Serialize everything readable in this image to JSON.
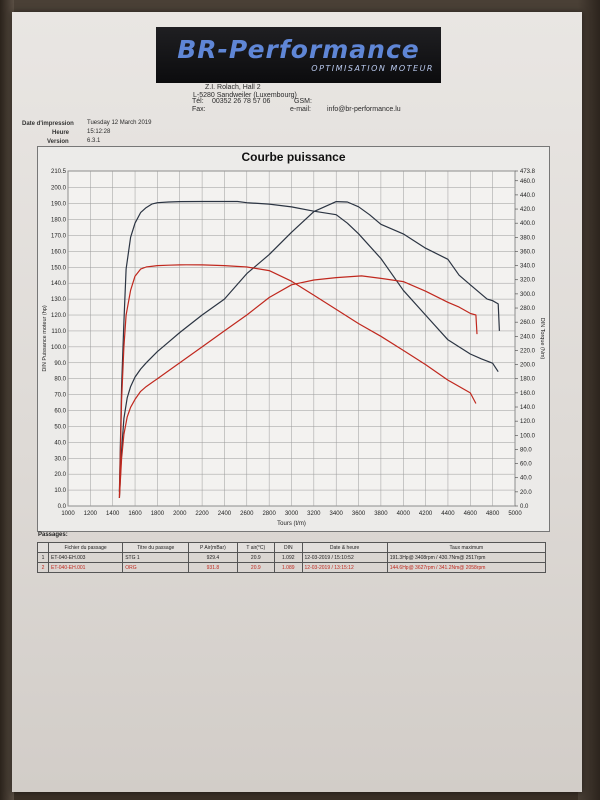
{
  "header": {
    "logo_text": "BR-Performance",
    "logo_tagline": "OPTIMISATION MOTEUR",
    "address_line1": "Z.I. Rolach, Hall 2",
    "address_line2": "L-5280 Sandweiler (Luxembourg)",
    "tel_label": "Tél:",
    "tel_value": "00352 26 78 57 06",
    "gsm_label": "GSM:",
    "fax_label": "Fax:",
    "email_label": "e-mail:",
    "email_value": "info@br-performance.lu"
  },
  "meta": {
    "date_label": "Date d'impression",
    "date_value": "Tuesday 12 March 2019",
    "time_label": "Heure",
    "time_value": "15:12:28",
    "version_label": "Version",
    "version_value": "6.3.1"
  },
  "chart_data": {
    "type": "line",
    "title": "Courbe puissance",
    "xlabel": "Tours (t/m)",
    "ylabel": "DIN Puissance moteur (hp)",
    "y2label": "DIN Torque (Nm)",
    "xlim": [
      1000,
      5000
    ],
    "ylim": [
      0,
      210.5
    ],
    "y2lim": [
      0,
      473.8
    ],
    "grid": true,
    "x_ticks": [
      "1000",
      "1200",
      "1400",
      "1600",
      "1800",
      "2000",
      "2200",
      "2400",
      "2600",
      "2800",
      "3000",
      "3200",
      "3400",
      "3600",
      "3800",
      "4000",
      "4200",
      "4400",
      "4600",
      "4800",
      "5000"
    ],
    "y_ticks": [
      "0.0",
      "10.0",
      "20.0",
      "30.0",
      "40.0",
      "50.0",
      "60.0",
      "70.0",
      "80.0",
      "90.0",
      "100.0",
      "110.0",
      "120.0",
      "130.0",
      "140.0",
      "150.0",
      "160.0",
      "170.0",
      "180.0",
      "190.0",
      "200.0",
      "210.5"
    ],
    "y2_ticks": [
      "0.0",
      "20.0",
      "40.0",
      "60.0",
      "80.0",
      "100.0",
      "120.0",
      "140.0",
      "160.0",
      "180.0",
      "200.0",
      "220.0",
      "240.0",
      "260.0",
      "280.0",
      "300.0",
      "320.0",
      "340.0",
      "360.0",
      "380.0",
      "400.0",
      "420.0",
      "440.0",
      "460.0",
      "473.8"
    ],
    "series": [
      {
        "name": "STG 1 torque",
        "axis": "right",
        "color": "#2b3442",
        "x": [
          1460,
          1480,
          1500,
          1520,
          1560,
          1600,
          1650,
          1700,
          1750,
          1800,
          1900,
          2000,
          2200,
          2400,
          2517,
          2600,
          2800,
          3000,
          3200,
          3400,
          3500,
          3600,
          3800,
          4000,
          4200,
          4400,
          4600,
          4700,
          4800,
          4850
        ],
        "y": [
          20,
          170,
          260,
          335,
          380,
          400,
          415,
          422,
          427,
          429,
          430,
          430.5,
          430.7,
          430.7,
          430.7,
          429,
          427,
          423,
          417,
          412,
          400,
          385,
          350,
          305,
          270,
          235,
          215,
          208,
          202,
          190
        ]
      },
      {
        "name": "STG 1 power",
        "axis": "left",
        "color": "#2b3442",
        "x": [
          1460,
          1480,
          1500,
          1530,
          1560,
          1600,
          1650,
          1700,
          1800,
          1900,
          2000,
          2200,
          2400,
          2600,
          2800,
          3000,
          3200,
          3400,
          3500,
          3600,
          3700,
          3800,
          4000,
          4200,
          4400,
          4500,
          4600,
          4700,
          4750,
          4800,
          4850,
          4860
        ],
        "y": [
          5,
          35,
          55,
          68,
          75,
          81,
          86,
          90,
          97,
          103,
          109,
          120,
          130,
          146,
          158,
          172,
          185,
          191.3,
          191,
          188,
          183,
          177,
          171,
          162,
          155,
          145,
          139,
          133,
          130,
          129,
          127,
          110
        ]
      },
      {
        "name": "ORG torque",
        "axis": "right",
        "color": "#c0281e",
        "x": [
          1460,
          1480,
          1500,
          1520,
          1560,
          1600,
          1650,
          1700,
          1800,
          1900,
          2000,
          2058,
          2200,
          2400,
          2600,
          2800,
          3000,
          3200,
          3400,
          3600,
          3800,
          4000,
          4200,
          4400,
          4600,
          4650
        ],
        "y": [
          15,
          150,
          225,
          270,
          305,
          325,
          335,
          338,
          340,
          340.5,
          341,
          341.2,
          341,
          340,
          338,
          333,
          318,
          298,
          278,
          258,
          240,
          220,
          200,
          178,
          160,
          145
        ]
      },
      {
        "name": "ORG power",
        "axis": "left",
        "color": "#c0281e",
        "x": [
          1460,
          1480,
          1500,
          1530,
          1560,
          1600,
          1650,
          1700,
          1800,
          1900,
          2000,
          2200,
          2400,
          2600,
          2800,
          3000,
          3200,
          3400,
          3627,
          3800,
          4000,
          4200,
          4400,
          4500,
          4600,
          4650,
          4660
        ],
        "y": [
          5,
          30,
          45,
          56,
          62,
          67,
          72,
          75,
          80,
          85,
          90,
          100,
          110,
          120,
          131,
          139,
          142,
          143.5,
          144.6,
          143,
          141,
          135,
          128,
          125,
          121,
          120,
          108
        ]
      }
    ]
  },
  "passages": {
    "title": "Passages:",
    "columns": [
      "",
      "Fichier du passage",
      "Titre du passage",
      "P Air(mBar)",
      "T air(°C)",
      "DIN",
      "Date & heure",
      "Taux maximum"
    ],
    "rows": [
      {
        "num": "1",
        "file": "ET-040-EH.003",
        "title": "STG 1",
        "pair": "929.4",
        "tair": "20.9",
        "din": "1.092",
        "date": "12-03-2019 / 15:10:52",
        "max": "191.3Hp@ 3408rpm / 430.7Nm@ 2517rpm"
      },
      {
        "num": "2",
        "file": "ET-040-EH.001",
        "title": "ORG",
        "pair": "931.8",
        "tair": "20.9",
        "din": "1.089",
        "date": "12-03-2019 / 13:15:12",
        "max": "144.6Hp@ 3627rpm / 341.2Nm@ 2058rpm"
      }
    ]
  }
}
